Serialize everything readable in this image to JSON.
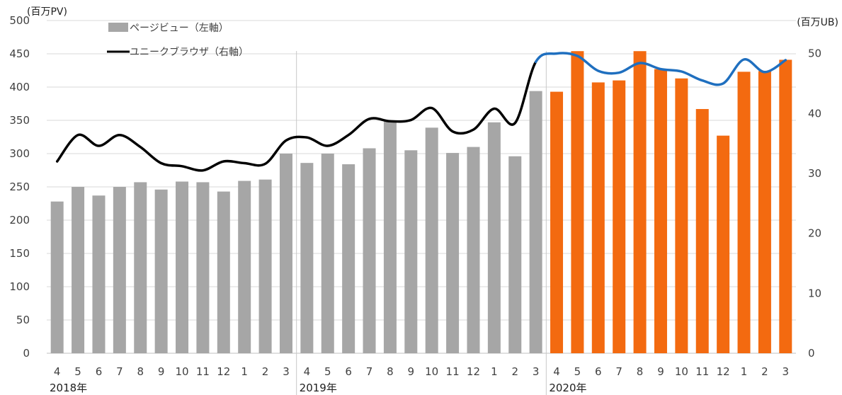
{
  "chart_data": {
    "type": "bar",
    "left_axis_unit": "(百万PV)",
    "right_axis_unit": "(百万UB)",
    "left_ylim": [
      0,
      500
    ],
    "left_ticks": [
      "0",
      "50",
      "100",
      "150",
      "200",
      "250",
      "300",
      "350",
      "400",
      "450",
      "500"
    ],
    "right_ylim": [
      0,
      55.5
    ],
    "right_ticks": [
      "0",
      "10",
      "20",
      "30",
      "40",
      "50"
    ],
    "grid": true,
    "legend": {
      "position": "top-left",
      "items": [
        "ページビュー（左軸）",
        "ユニークブラウザ（右軸）"
      ]
    },
    "categories": [
      "4",
      "5",
      "6",
      "7",
      "8",
      "9",
      "10",
      "11",
      "12",
      "1",
      "2",
      "3",
      "4",
      "5",
      "6",
      "7",
      "8",
      "9",
      "10",
      "11",
      "12",
      "1",
      "2",
      "3",
      "4",
      "5",
      "6",
      "7",
      "8",
      "9",
      "10",
      "11",
      "12",
      "1",
      "2",
      "3"
    ],
    "year_labels": [
      {
        "label": "2018年",
        "start_index": 0
      },
      {
        "label": "2019年",
        "start_index": 12
      },
      {
        "label": "2020年",
        "start_index": 24
      }
    ],
    "series": [
      {
        "name": "ページビュー（左軸）",
        "type": "bar",
        "axis": "left",
        "values": [
          228,
          250,
          237,
          250,
          257,
          246,
          258,
          257,
          243,
          259,
          261,
          300,
          286,
          300,
          284,
          308,
          350,
          305,
          339,
          301,
          310,
          347,
          296,
          394,
          393,
          454,
          407,
          410,
          454,
          427,
          413,
          367,
          327,
          423,
          424,
          441
        ]
      },
      {
        "name": "ユニークブラウザ（右軸）",
        "type": "line",
        "axis": "right",
        "values": [
          32.0,
          36.4,
          34.6,
          36.4,
          34.4,
          31.7,
          31.2,
          30.5,
          32.0,
          31.7,
          31.6,
          35.5,
          36.0,
          34.6,
          36.4,
          39.1,
          38.7,
          38.9,
          40.9,
          37.0,
          37.3,
          40.8,
          38.4,
          48.6,
          50.0,
          49.6,
          47.1,
          46.8,
          48.4,
          47.4,
          47.0,
          45.5,
          45.0,
          49.0,
          46.9,
          48.9
        ]
      }
    ],
    "colors": {
      "bar_gray": "#a6a6a6",
      "bar_orange": "#f36a10",
      "line_black": "#000000",
      "line_blue": "#1f6fbf",
      "grid": "#d9d9d9",
      "divider": "#c8c8c8"
    },
    "highlight_start_index": 24
  }
}
